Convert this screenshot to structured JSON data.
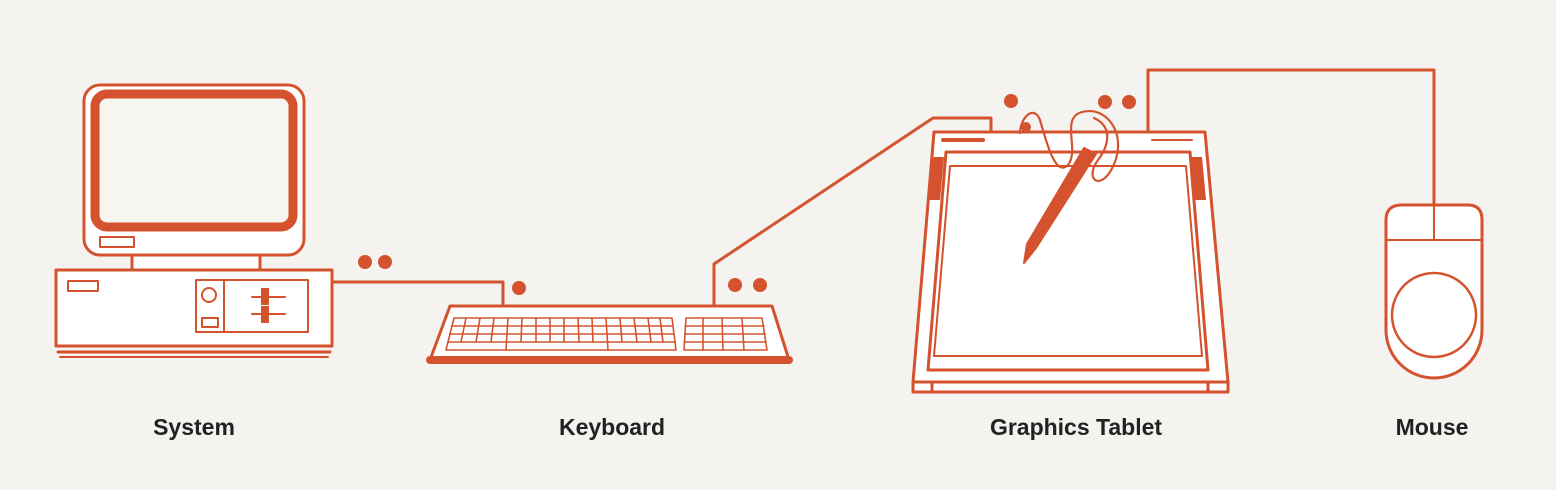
{
  "devices": [
    {
      "id": "system",
      "label": "System"
    },
    {
      "id": "keyboard",
      "label": "Keyboard"
    },
    {
      "id": "tablet",
      "label": "Graphics Tablet"
    },
    {
      "id": "mouse",
      "label": "Mouse"
    }
  ],
  "colors": {
    "line": "#d4532e",
    "fill": "#ffffff",
    "screen": "#f7f5f0",
    "text": "#222222",
    "background": "#f4f3ef"
  }
}
